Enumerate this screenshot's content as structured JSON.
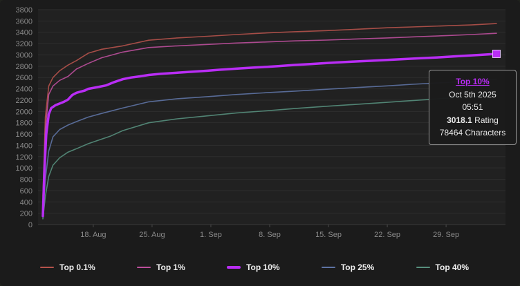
{
  "theme": {
    "background": "#1b1b1b",
    "plot_background": "#212121",
    "grid_color": "#2e2e2e",
    "axis_label_color": "#8a8a8a",
    "legend_text_color": "#f0f0f0",
    "tooltip_border": "#9a9a9a",
    "accent": "#b92df5"
  },
  "tooltip": {
    "series": "Top 10%",
    "date": "Oct 5th 2025",
    "time": "05:51",
    "rating_value": "3018.1",
    "rating_label": "Rating",
    "characters_value": "78464",
    "characters_label": "Characters",
    "accent": "#b92df5"
  },
  "chart_data": {
    "type": "line",
    "title": "",
    "xlabel": "",
    "ylabel": "",
    "grid": true,
    "legend_position": "bottom",
    "ylim": [
      0,
      3800
    ],
    "y_tick_step": 200,
    "x_range_days": [
      0,
      54
    ],
    "x_tick_days": [
      6,
      13,
      20,
      27,
      34,
      41,
      48
    ],
    "x_tick_labels": [
      "18. Aug",
      "25. Aug",
      "1. Sep",
      "8. Sep",
      "15. Sep",
      "22. Sep",
      "29. Sep"
    ],
    "series": [
      {
        "name": "Top 0.1%",
        "color": "#b5524b",
        "width": 1.6,
        "highlight": false,
        "points": [
          [
            0,
            500
          ],
          [
            0.3,
            1900
          ],
          [
            0.7,
            2450
          ],
          [
            1.2,
            2600
          ],
          [
            2,
            2720
          ],
          [
            3,
            2820
          ],
          [
            4,
            2900
          ],
          [
            5.4,
            3030
          ],
          [
            7,
            3100
          ],
          [
            9.5,
            3160
          ],
          [
            12.6,
            3260
          ],
          [
            16,
            3300
          ],
          [
            19.6,
            3330
          ],
          [
            23,
            3360
          ],
          [
            26.7,
            3390
          ],
          [
            30,
            3410
          ],
          [
            33.8,
            3430
          ],
          [
            37,
            3450
          ],
          [
            41,
            3480
          ],
          [
            44,
            3495
          ],
          [
            48,
            3515
          ],
          [
            51,
            3530
          ],
          [
            54,
            3555
          ]
        ]
      },
      {
        "name": "Top 1%",
        "color": "#bd4f9c",
        "width": 1.6,
        "highlight": false,
        "points": [
          [
            0,
            400
          ],
          [
            0.3,
            1700
          ],
          [
            0.7,
            2300
          ],
          [
            1.2,
            2450
          ],
          [
            2,
            2550
          ],
          [
            3,
            2620
          ],
          [
            4,
            2750
          ],
          [
            5.4,
            2850
          ],
          [
            7,
            2950
          ],
          [
            9.5,
            3050
          ],
          [
            12.6,
            3130
          ],
          [
            16,
            3160
          ],
          [
            19.6,
            3185
          ],
          [
            23,
            3210
          ],
          [
            26.7,
            3230
          ],
          [
            30,
            3248
          ],
          [
            33.8,
            3262
          ],
          [
            37,
            3280
          ],
          [
            41,
            3300
          ],
          [
            44,
            3318
          ],
          [
            48,
            3340
          ],
          [
            51,
            3360
          ],
          [
            54,
            3382
          ]
        ]
      },
      {
        "name": "Top 10%",
        "color": "#b92df5",
        "width": 3.5,
        "highlight": true,
        "end_marker": "square",
        "points": [
          [
            0,
            150
          ],
          [
            0.2,
            1000
          ],
          [
            0.4,
            1600
          ],
          [
            0.7,
            1950
          ],
          [
            1,
            2060
          ],
          [
            1.5,
            2110
          ],
          [
            2,
            2140
          ],
          [
            2.5,
            2170
          ],
          [
            3,
            2210
          ],
          [
            3.5,
            2290
          ],
          [
            4,
            2330
          ],
          [
            5,
            2370
          ],
          [
            5.4,
            2400
          ],
          [
            6.5,
            2430
          ],
          [
            7.5,
            2460
          ],
          [
            8.5,
            2520
          ],
          [
            9.5,
            2570
          ],
          [
            10.5,
            2600
          ],
          [
            11.5,
            2620
          ],
          [
            12.6,
            2645
          ],
          [
            14,
            2665
          ],
          [
            16,
            2685
          ],
          [
            18,
            2705
          ],
          [
            19.6,
            2720
          ],
          [
            21,
            2737
          ],
          [
            23,
            2757
          ],
          [
            25,
            2775
          ],
          [
            26.7,
            2790
          ],
          [
            28,
            2802
          ],
          [
            30,
            2822
          ],
          [
            32,
            2840
          ],
          [
            33.8,
            2856
          ],
          [
            35,
            2866
          ],
          [
            37,
            2882
          ],
          [
            39,
            2896
          ],
          [
            41,
            2912
          ],
          [
            43,
            2926
          ],
          [
            45,
            2941
          ],
          [
            47,
            2956
          ],
          [
            48,
            2964
          ],
          [
            50,
            2982
          ],
          [
            52,
            3000
          ],
          [
            54,
            3018.1
          ]
        ]
      },
      {
        "name": "Top 25%",
        "color": "#5e73a4",
        "width": 1.6,
        "highlight": false,
        "points": [
          [
            0,
            150
          ],
          [
            0.3,
            800
          ],
          [
            0.7,
            1300
          ],
          [
            1.2,
            1550
          ],
          [
            2,
            1680
          ],
          [
            3,
            1760
          ],
          [
            4,
            1820
          ],
          [
            5.4,
            1900
          ],
          [
            7,
            1965
          ],
          [
            9.5,
            2060
          ],
          [
            12.6,
            2170
          ],
          [
            16,
            2225
          ],
          [
            19.6,
            2262
          ],
          [
            23,
            2300
          ],
          [
            26.7,
            2332
          ],
          [
            30,
            2360
          ],
          [
            33.8,
            2392
          ],
          [
            37,
            2420
          ],
          [
            41,
            2452
          ],
          [
            44,
            2480
          ],
          [
            48,
            2512
          ],
          [
            51,
            2540
          ],
          [
            54,
            2572
          ]
        ]
      },
      {
        "name": "Top 40%",
        "color": "#578f7d",
        "width": 1.6,
        "highlight": false,
        "points": [
          [
            0,
            100
          ],
          [
            0.3,
            500
          ],
          [
            0.7,
            850
          ],
          [
            1.2,
            1050
          ],
          [
            2,
            1180
          ],
          [
            3,
            1280
          ],
          [
            4,
            1340
          ],
          [
            5.4,
            1430
          ],
          [
            7,
            1510
          ],
          [
            8,
            1560
          ],
          [
            9.5,
            1660
          ],
          [
            12.6,
            1800
          ],
          [
            16,
            1870
          ],
          [
            19.6,
            1922
          ],
          [
            23,
            1972
          ],
          [
            26.7,
            2012
          ],
          [
            30,
            2052
          ],
          [
            33.8,
            2092
          ],
          [
            37,
            2122
          ],
          [
            41,
            2162
          ],
          [
            44,
            2192
          ],
          [
            48,
            2232
          ],
          [
            51,
            2262
          ],
          [
            54,
            2302
          ]
        ]
      }
    ]
  }
}
